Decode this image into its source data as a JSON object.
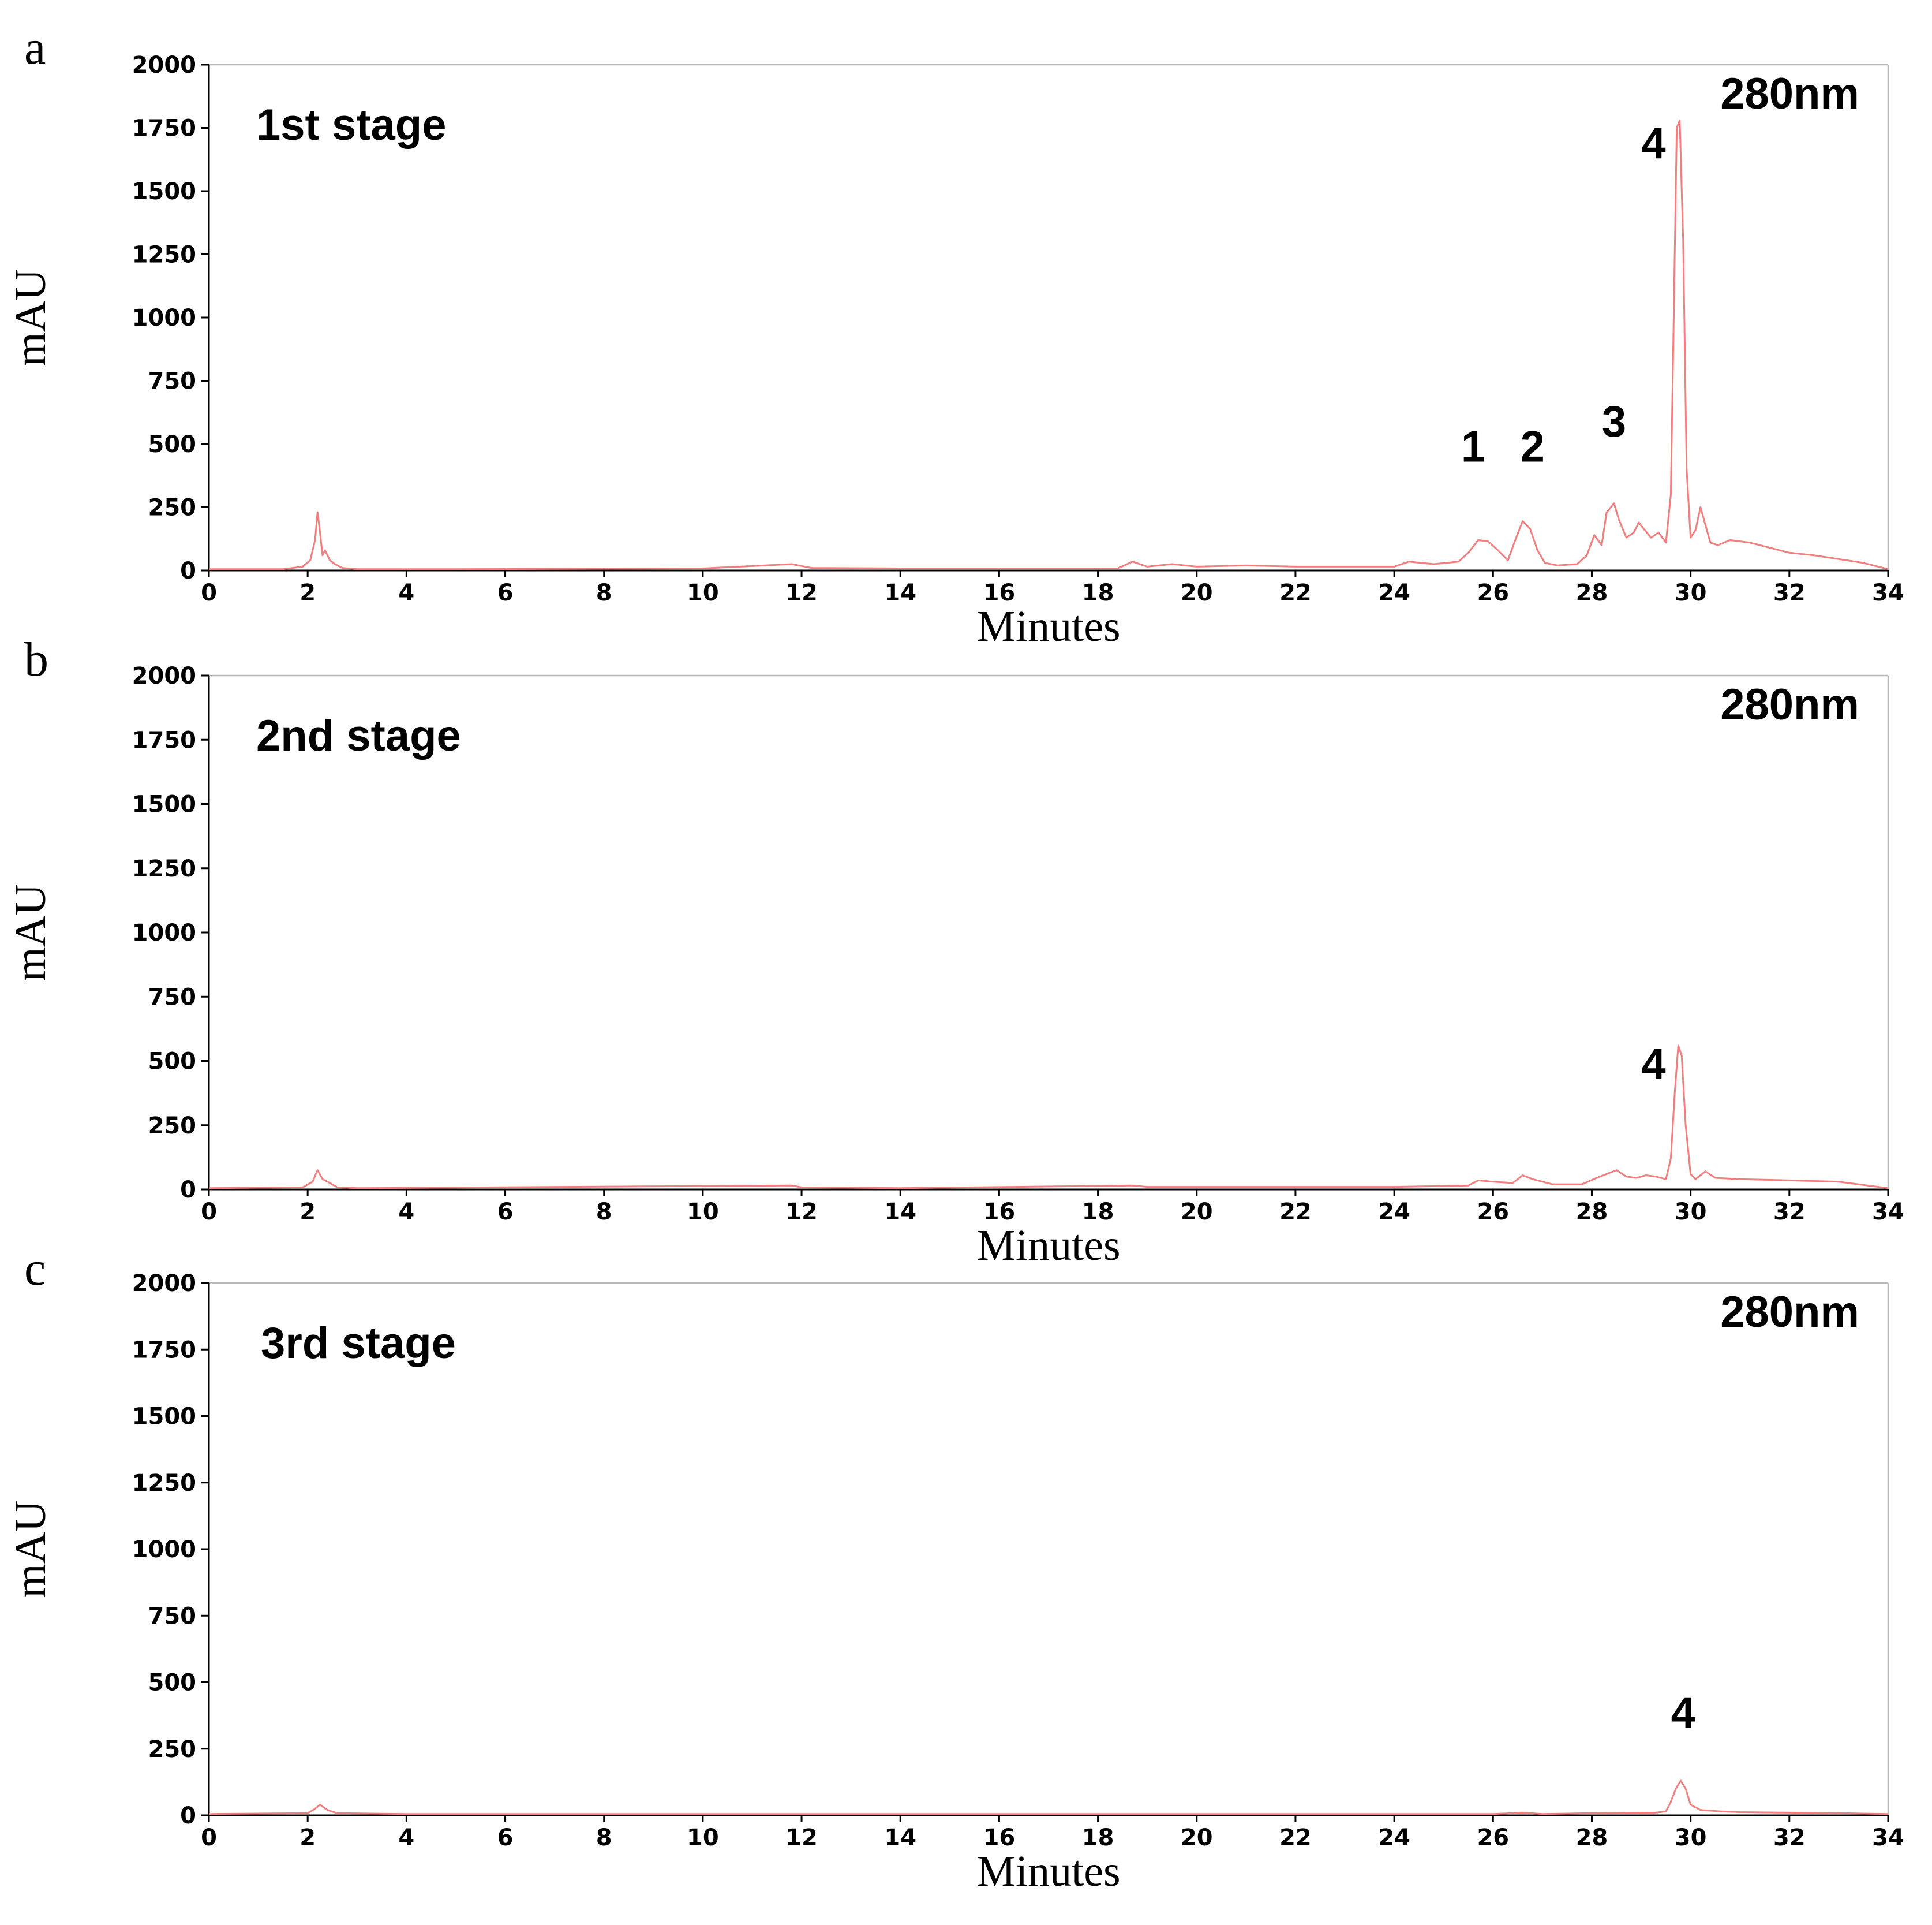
{
  "figure": {
    "trace_color": "#f08080"
  },
  "chart_data": [
    {
      "type": "line",
      "panel": "a",
      "title": "1st stage",
      "wavelength": "280nm",
      "xlabel": "Minutes",
      "ylabel": "mAU",
      "xlim": [
        0,
        34
      ],
      "ylim": [
        0,
        2000
      ],
      "xticks": [
        "0",
        "2",
        "4",
        "6",
        "8",
        "10",
        "12",
        "14",
        "16",
        "18",
        "20",
        "22",
        "24",
        "26",
        "28",
        "30",
        "32",
        "34"
      ],
      "yticks": [
        "0",
        "250",
        "500",
        "750",
        "1000",
        "1250",
        "1500",
        "1750",
        "2000"
      ],
      "grid": false,
      "peak_labels": [
        {
          "text": "1",
          "x": 25.6,
          "y": 430
        },
        {
          "text": "2",
          "x": 26.8,
          "y": 430
        },
        {
          "text": "3",
          "x": 28.45,
          "y": 530
        },
        {
          "text": "4",
          "x": 29.25,
          "y": 1630
        }
      ],
      "series": [
        {
          "x": [
            0,
            1.5,
            1.9,
            2.05,
            2.15,
            2.2,
            2.25,
            2.3,
            2.35,
            2.45,
            2.55,
            2.7,
            3,
            5,
            10,
            11.8,
            12.2,
            14,
            18.4,
            18.7,
            19,
            19.5,
            20,
            21,
            22,
            24,
            24.3,
            24.8,
            25.3,
            25.5,
            25.7,
            25.9,
            26.1,
            26.3,
            26.45,
            26.6,
            26.75,
            26.9,
            27.05,
            27.3,
            27.7,
            27.9,
            28.05,
            28.2,
            28.3,
            28.45,
            28.55,
            28.7,
            28.85,
            28.95,
            29.05,
            29.2,
            29.35,
            29.5,
            29.6,
            29.65,
            29.72,
            29.78,
            29.85,
            29.92,
            30.0,
            30.1,
            30.2,
            30.3,
            30.4,
            30.55,
            30.8,
            31.2,
            31.6,
            32,
            32.5,
            33,
            33.5,
            34
          ],
          "y": [
            5,
            5,
            15,
            40,
            120,
            230,
            150,
            60,
            80,
            40,
            25,
            10,
            5,
            5,
            8,
            25,
            10,
            8,
            8,
            35,
            15,
            25,
            15,
            20,
            15,
            15,
            35,
            25,
            35,
            70,
            120,
            115,
            80,
            40,
            120,
            195,
            165,
            80,
            30,
            20,
            25,
            60,
            140,
            100,
            230,
            265,
            200,
            130,
            150,
            190,
            165,
            130,
            150,
            110,
            300,
            900,
            1750,
            1780,
            1300,
            400,
            130,
            160,
            250,
            180,
            110,
            100,
            120,
            110,
            90,
            70,
            60,
            45,
            30,
            5
          ]
        }
      ]
    },
    {
      "type": "line",
      "panel": "b",
      "title": "2nd stage",
      "wavelength": "280nm",
      "xlabel": "Minutes",
      "ylabel": "mAU",
      "xlim": [
        0,
        34
      ],
      "ylim": [
        0,
        2000
      ],
      "xticks": [
        "0",
        "2",
        "4",
        "6",
        "8",
        "10",
        "12",
        "14",
        "16",
        "18",
        "20",
        "22",
        "24",
        "26",
        "28",
        "30",
        "32",
        "34"
      ],
      "yticks": [
        "0",
        "250",
        "500",
        "750",
        "1000",
        "1250",
        "1500",
        "1750",
        "2000"
      ],
      "grid": false,
      "peak_labels": [
        {
          "text": "4",
          "x": 29.25,
          "y": 430
        }
      ],
      "series": [
        {
          "x": [
            0,
            1.9,
            2.1,
            2.2,
            2.3,
            2.45,
            2.6,
            3,
            11.8,
            12,
            14,
            18.7,
            19,
            20,
            24,
            25.5,
            25.7,
            26,
            26.4,
            26.6,
            26.8,
            27.2,
            27.8,
            28.1,
            28.3,
            28.5,
            28.7,
            28.9,
            29.1,
            29.3,
            29.5,
            29.6,
            29.68,
            29.75,
            29.82,
            29.9,
            30.0,
            30.1,
            30.3,
            30.5,
            31,
            32,
            33,
            34
          ],
          "y": [
            5,
            8,
            30,
            75,
            40,
            25,
            8,
            5,
            15,
            8,
            5,
            15,
            10,
            10,
            10,
            15,
            35,
            30,
            25,
            55,
            40,
            20,
            20,
            45,
            60,
            75,
            50,
            45,
            55,
            50,
            40,
            120,
            380,
            560,
            520,
            250,
            60,
            40,
            70,
            45,
            40,
            35,
            30,
            5
          ]
        }
      ]
    },
    {
      "type": "line",
      "panel": "c",
      "title": "3rd stage",
      "wavelength": "280nm",
      "xlabel": "Minutes",
      "ylabel": "mAU",
      "xlim": [
        0,
        34
      ],
      "ylim": [
        0,
        2000
      ],
      "xticks": [
        "0",
        "2",
        "4",
        "6",
        "8",
        "10",
        "12",
        "14",
        "16",
        "18",
        "20",
        "22",
        "24",
        "26",
        "28",
        "30",
        "32",
        "34"
      ],
      "yticks": [
        "0",
        "250",
        "500",
        "750",
        "1000",
        "1250",
        "1500",
        "1750",
        "2000"
      ],
      "grid": false,
      "peak_labels": [
        {
          "text": "4",
          "x": 29.85,
          "y": 330
        }
      ],
      "series": [
        {
          "x": [
            0,
            2.0,
            2.15,
            2.25,
            2.4,
            2.6,
            4,
            26,
            26.6,
            27,
            28,
            29.3,
            29.5,
            29.6,
            29.7,
            29.8,
            29.9,
            30.0,
            30.2,
            30.6,
            31,
            32,
            33,
            34
          ],
          "y": [
            5,
            8,
            25,
            40,
            20,
            8,
            5,
            5,
            10,
            5,
            8,
            10,
            15,
            50,
            100,
            130,
            100,
            40,
            20,
            15,
            12,
            10,
            8,
            5
          ]
        }
      ]
    }
  ]
}
